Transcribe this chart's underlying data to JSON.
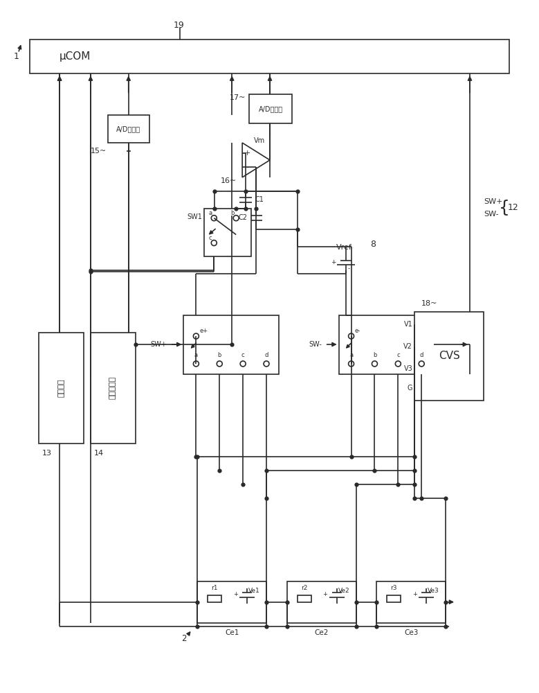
{
  "bg_color": "#ffffff",
  "lc": "#2a2a2a",
  "labels": {
    "uCOM": "μCOM",
    "l1": "1",
    "l2": "2",
    "l8": "8",
    "l12": "12",
    "l13": "13",
    "l14": "14",
    "l15": "15~",
    "l16": "16~",
    "l17": "17~",
    "l18": "18~",
    "l19": "19",
    "AD": "A/D转换器",
    "Vm": "Vm",
    "Vref": "Vref",
    "C1": "C1",
    "C2": "C2",
    "SW1": "SW1",
    "SWp": "SW+",
    "SWm": "SW-",
    "CVS": "CVS",
    "chg": "充放电部",
    "volt": "电压检测部",
    "Ce1": "Ce1",
    "Ce2": "Ce2",
    "Ce3": "Ce3",
    "Ve1": "Ve1",
    "Ve2": "Ve2",
    "Ve3": "Ve3",
    "r1": "r1",
    "r2": "r2",
    "r3": "r3",
    "V1": "V1",
    "V2": "V2",
    "V3": "V3",
    "G": "G"
  }
}
